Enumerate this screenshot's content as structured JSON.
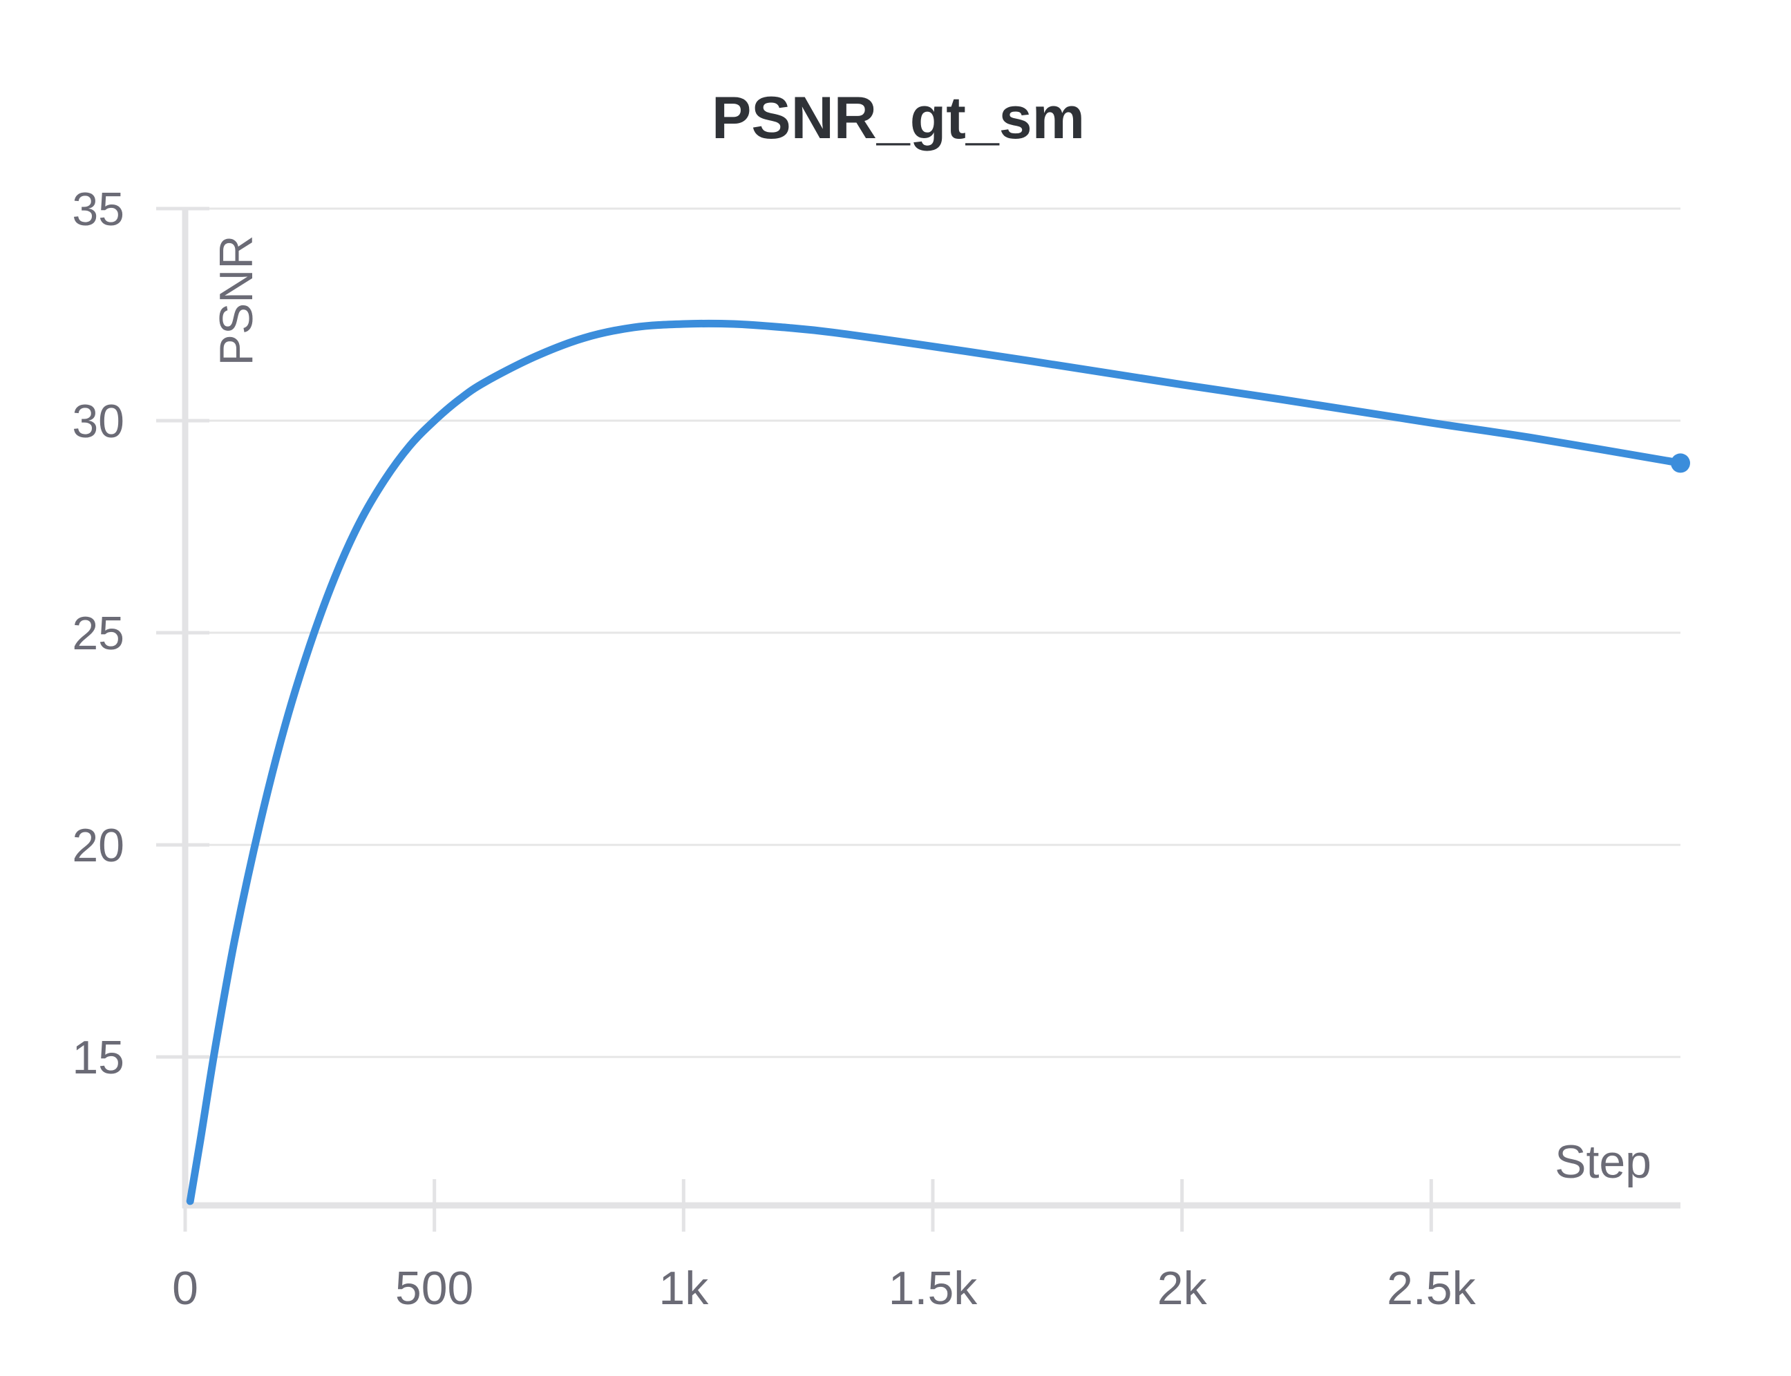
{
  "chart_data": {
    "type": "line",
    "title": "PSNR_gt_sm",
    "xlabel": "Step",
    "ylabel": "PSNR",
    "xlim": [
      0,
      3000
    ],
    "ylim": [
      11.5,
      35
    ],
    "x_ticks": [
      0,
      500,
      1000,
      1500,
      2000,
      2500
    ],
    "x_tick_labels": [
      "0",
      "500",
      "1k",
      "1.5k",
      "2k",
      "2.5k"
    ],
    "y_ticks": [
      15,
      20,
      25,
      30,
      35
    ],
    "y_tick_labels": [
      "15",
      "20",
      "25",
      "30",
      "35"
    ],
    "grid": true,
    "legend": "none",
    "series": [
      {
        "color": "#3b8ddb",
        "x": [
          10,
          30,
          60,
          100,
          150,
          200,
          250,
          300,
          350,
          400,
          450,
          500,
          550,
          600,
          700,
          800,
          900,
          1000,
          1100,
          1200,
          1300,
          1500,
          1700,
          2000,
          2200,
          2500,
          2700,
          3000
        ],
        "y": [
          11.6,
          13.0,
          15.2,
          17.8,
          20.5,
          22.8,
          24.7,
          26.3,
          27.6,
          28.6,
          29.4,
          30.0,
          30.5,
          30.9,
          31.5,
          31.95,
          32.2,
          32.28,
          32.28,
          32.2,
          32.08,
          31.75,
          31.4,
          30.85,
          30.5,
          29.95,
          29.6,
          29.0
        ]
      }
    ],
    "end_marker": {
      "x": 3000,
      "y": 29.0
    }
  }
}
